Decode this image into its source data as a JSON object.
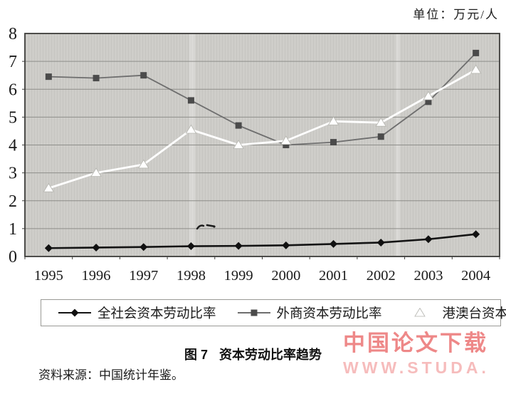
{
  "unit_label": "单位：万元/人",
  "chart_data": {
    "type": "line",
    "title": "图 7  资本劳动比率趋势",
    "xlabel": "",
    "ylabel": "",
    "unit": "万元/人",
    "x": [
      1995,
      1996,
      1997,
      1998,
      1999,
      2000,
      2001,
      2002,
      2003,
      2004
    ],
    "ylim": [
      0,
      8
    ],
    "yticks": [
      0,
      1,
      2,
      3,
      4,
      5,
      6,
      7,
      8
    ],
    "grid": true,
    "legend_position": "bottom",
    "plot_bg": "#cac9c5",
    "grid_color": "#8e8e8a",
    "axis_color": "#3d3d3a",
    "series": [
      {
        "name": "全社会资本劳动比率",
        "marker": "diamond",
        "line_color": "#141414",
        "marker_color": "#111111",
        "marker_edge": "",
        "values": [
          0.3,
          0.32,
          0.34,
          0.37,
          0.38,
          0.4,
          0.45,
          0.5,
          0.62,
          0.8
        ]
      },
      {
        "name": "外商资本劳动比率",
        "marker": "square",
        "line_color": "#6e6e6e",
        "marker_color": "#4b4b4b",
        "marker_edge": "",
        "values": [
          6.45,
          6.4,
          6.5,
          5.6,
          4.7,
          4.0,
          4.1,
          4.3,
          5.55,
          7.3
        ]
      },
      {
        "name": "港澳台资本劳动比率",
        "marker": "triangle",
        "line_color": "#ffffff",
        "marker_color": "#ffffff",
        "marker_edge": "#b4b4ae",
        "values": [
          2.45,
          3.0,
          3.3,
          4.55,
          4.0,
          4.15,
          4.85,
          4.8,
          5.75,
          6.7
        ]
      }
    ]
  },
  "caption": {
    "figure_label": "图 7",
    "title": "资本劳动比率趋势"
  },
  "source_note": "资料来源：中国统计年鉴。",
  "watermark": {
    "line1": "中国论文下载",
    "line2": "WWW.STUDA.",
    "color1": "#ee8888",
    "color2": "#f6bcbc"
  }
}
